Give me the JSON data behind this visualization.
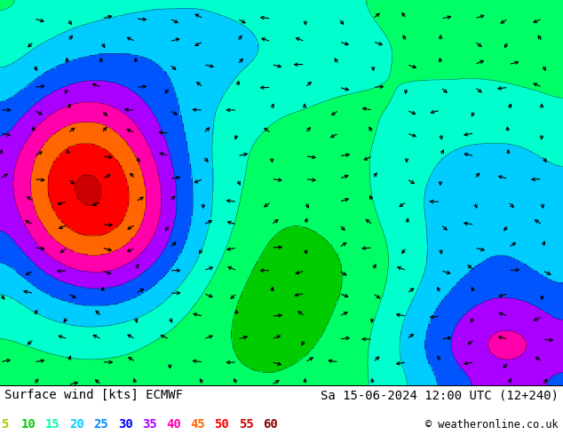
{
  "title_left": "Surface wind [kts] ECMWF",
  "title_right": "Sa 15-06-2024 12:00 UTC (12+240)",
  "copyright": "© weatheronline.co.uk",
  "legend_values": [
    5,
    10,
    15,
    20,
    25,
    30,
    35,
    40,
    45,
    50,
    55,
    60
  ],
  "legend_colors": [
    "#aacc00",
    "#00cc00",
    "#00ffaa",
    "#00ccff",
    "#0088ff",
    "#0000ff",
    "#aa00ff",
    "#ff00aa",
    "#ff6600",
    "#ff0000",
    "#cc0000",
    "#880000"
  ],
  "colormap_colors": [
    "#009900",
    "#00cc00",
    "#00ff66",
    "#00ffcc",
    "#00ccff",
    "#0055ff",
    "#aa00ff",
    "#ff00aa",
    "#ff6600",
    "#ff0000",
    "#cc0000",
    "#880000"
  ],
  "levels": [
    0,
    5,
    10,
    15,
    20,
    25,
    30,
    35,
    40,
    45,
    50,
    55,
    60
  ],
  "bg_color": "#ffffff",
  "sea_color": "#00bbff",
  "title_fontsize": 10,
  "legend_fontsize": 10
}
